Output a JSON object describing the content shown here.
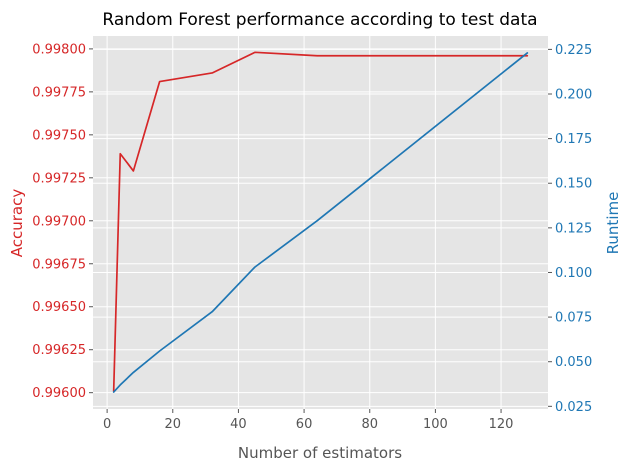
{
  "chart_data": {
    "type": "line",
    "title": "Random Forest performance according to test data",
    "xlabel": "Number of estimators",
    "xlim": [
      -4.3,
      134.3
    ],
    "xticks": [
      0,
      20,
      40,
      60,
      80,
      100,
      120
    ],
    "x": [
      2,
      4,
      8,
      16,
      32,
      45,
      64,
      128
    ],
    "grid": true,
    "background": "#e5e5e5",
    "series": [
      {
        "name": "Accuracy",
        "axis": "left",
        "color": "#d62728",
        "values": [
          0.99601,
          0.99739,
          0.99729,
          0.99781,
          0.99786,
          0.99798,
          0.99796,
          0.99796
        ]
      },
      {
        "name": "Runtime",
        "axis": "right",
        "color": "#1f77b4",
        "values": [
          0.033,
          0.037,
          0.044,
          0.056,
          0.078,
          0.103,
          0.129,
          0.223
        ]
      }
    ],
    "left_axis": {
      "label": "Accuracy",
      "ylim": [
        0.995905,
        0.998075
      ],
      "ticks": [
        0.996,
        0.99625,
        0.9965,
        0.99675,
        0.997,
        0.99725,
        0.9975,
        0.99775,
        0.998
      ],
      "tick_labels": [
        "0.99600",
        "0.99625",
        "0.99650",
        "0.99675",
        "0.99700",
        "0.99725",
        "0.99750",
        "0.99775",
        "0.99800"
      ]
    },
    "right_axis": {
      "label": "Runtime",
      "ylim": [
        0.0235,
        0.2325
      ],
      "ticks": [
        0.025,
        0.05,
        0.075,
        0.1,
        0.125,
        0.15,
        0.175,
        0.2,
        0.225
      ],
      "tick_labels": [
        "0.025",
        "0.050",
        "0.075",
        "0.100",
        "0.125",
        "0.150",
        "0.175",
        "0.200",
        "0.225"
      ]
    }
  }
}
